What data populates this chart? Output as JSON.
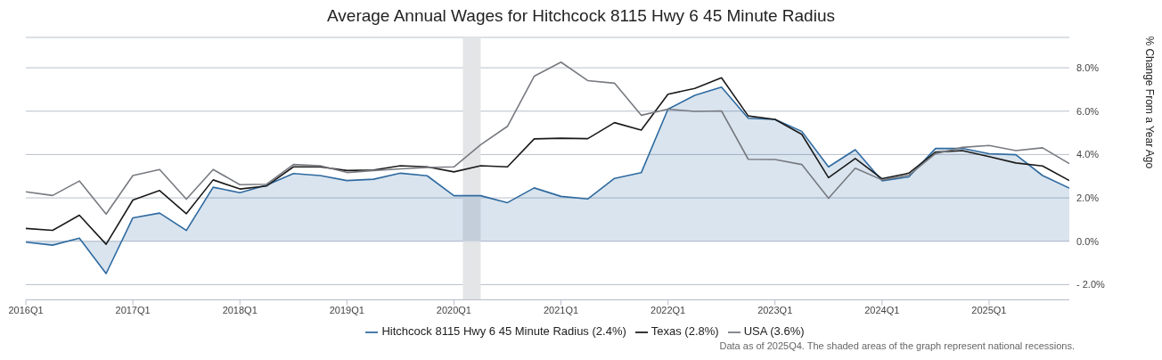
{
  "chart_data": {
    "type": "line",
    "title": "Average Annual Wages for Hitchcock 8115 Hwy 6 45 Minute Radius",
    "ylabel": "% Change From a Year Ago",
    "x": [
      "2016-01",
      "2016-04",
      "2016-07",
      "2016-10",
      "2017-01",
      "2017-04",
      "2017-07",
      "2017-10",
      "2018-01",
      "2018-04",
      "2018-07",
      "2018-10",
      "2019-01",
      "2019-04",
      "2019-07",
      "2019-10",
      "2020-01",
      "2020-04",
      "2020-07",
      "2020-10",
      "2021-01",
      "2021-04",
      "2021-07",
      "2021-10",
      "2022-01",
      "2022-04",
      "2022-07",
      "2022-10",
      "2023-01",
      "2023-04",
      "2023-07",
      "2023-10",
      "2024-01",
      "2024-04",
      "2024-07",
      "2024-10",
      "2025-01",
      "2025-04",
      "2025-07",
      "2025-10"
    ],
    "series": [
      {
        "name": "Hitchcock 8115 Hwy 6 45 Minute Radius (2.4%)",
        "type": "area",
        "color": "#2f6aa0",
        "values": [
          -0.04,
          -0.18,
          0.14,
          -1.49,
          1.08,
          1.3,
          0.5,
          2.49,
          2.24,
          2.59,
          3.12,
          3.03,
          2.8,
          2.86,
          3.14,
          3.02,
          2.1,
          2.1,
          1.78,
          2.46,
          2.07,
          1.95,
          2.9,
          3.16,
          6.09,
          6.73,
          7.11,
          5.67,
          5.62,
          5.07,
          3.43,
          4.22,
          2.79,
          2.97,
          4.28,
          4.28,
          4.04,
          3.99,
          3.03,
          2.45
        ]
      },
      {
        "name": "Texas (2.8%)",
        "color": "#1a1a1a",
        "values": [
          0.59,
          0.5,
          1.2,
          -0.14,
          1.9,
          2.34,
          1.27,
          2.83,
          2.41,
          2.55,
          3.43,
          3.43,
          3.26,
          3.29,
          3.48,
          3.43,
          3.2,
          3.48,
          3.43,
          4.72,
          4.75,
          4.73,
          5.47,
          5.13,
          6.78,
          7.05,
          7.54,
          5.78,
          5.62,
          4.93,
          2.93,
          3.82,
          2.88,
          3.14,
          4.11,
          4.18,
          3.9,
          3.61,
          3.47,
          2.8
        ]
      },
      {
        "name": "USA (3.6%)",
        "color": "#777a80",
        "values": [
          2.28,
          2.11,
          2.78,
          1.25,
          3.03,
          3.31,
          1.94,
          3.31,
          2.61,
          2.63,
          3.54,
          3.48,
          3.17,
          3.26,
          3.34,
          3.4,
          3.43,
          4.45,
          5.3,
          7.61,
          8.26,
          7.41,
          7.29,
          5.81,
          6.09,
          5.99,
          6.01,
          3.78,
          3.77,
          3.54,
          1.98,
          3.37,
          2.83,
          3.05,
          4.04,
          4.33,
          4.42,
          4.18,
          4.31,
          3.58
        ]
      }
    ],
    "xlim": [
      "2016-01",
      "2025-10"
    ],
    "xticks": [
      {
        "value": "2016-01",
        "label": "2016Q1"
      },
      {
        "value": "2017-01",
        "label": "2017Q1"
      },
      {
        "value": "2018-01",
        "label": "2018Q1"
      },
      {
        "value": "2019-01",
        "label": "2019Q1"
      },
      {
        "value": "2020-01",
        "label": "2020Q1"
      },
      {
        "value": "2021-01",
        "label": "2021Q1"
      },
      {
        "value": "2022-01",
        "label": "2022Q1"
      },
      {
        "value": "2023-01",
        "label": "2023Q1"
      },
      {
        "value": "2024-01",
        "label": "2024Q1"
      },
      {
        "value": "2025-01",
        "label": "2025Q1"
      }
    ],
    "ylim": [
      -2.7,
      9.4
    ],
    "yticks": [
      {
        "value": -2,
        "label": "- 2.0%"
      },
      {
        "value": 0,
        "label": "0.0%"
      },
      {
        "value": 2,
        "label": "2.0%"
      },
      {
        "value": 4,
        "label": "4.0%"
      },
      {
        "value": 6,
        "label": "6.0%"
      },
      {
        "value": 8,
        "label": "8.0%"
      }
    ],
    "bands": [
      {
        "axis": "x",
        "from": "2020-02",
        "to": "2020-04",
        "color": "#e4e5e7"
      }
    ],
    "grid": "y",
    "legend": "bottom",
    "annotations": [
      "Data as of 2025Q4. The shaded areas of the graph represent national recessions."
    ]
  }
}
